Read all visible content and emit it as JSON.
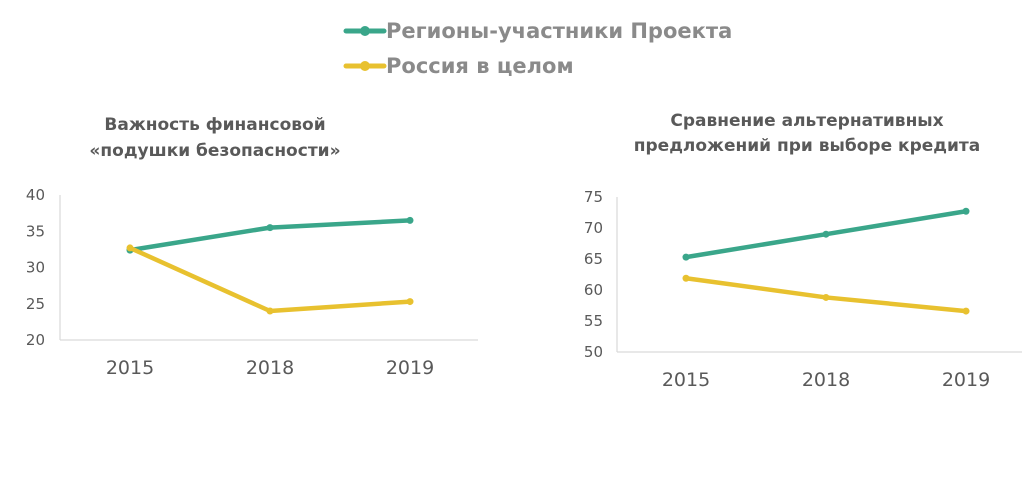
{
  "legend": {
    "items": [
      {
        "label": "Регионы-участники Проекта",
        "color": "#3aa68a"
      },
      {
        "label": "Россия в целом",
        "color": "#e8c12f"
      }
    ]
  },
  "chart_data": [
    {
      "type": "line",
      "title_lines": [
        "Важность финансовой",
        "«подушки безопасности»"
      ],
      "categories": [
        "2015",
        "2018",
        "2019"
      ],
      "ylim": [
        20,
        40
      ],
      "yticks": [
        "40",
        "35",
        "30",
        "25",
        "20"
      ],
      "series": [
        {
          "name": "Регионы-участники Проекта",
          "color": "#3aa68a",
          "values": [
            32.4,
            35.5,
            36.5
          ]
        },
        {
          "name": "Россия в целом",
          "color": "#e8c12f",
          "values": [
            32.7,
            24.0,
            25.3
          ]
        }
      ],
      "grid": false,
      "legend_position": "top"
    },
    {
      "type": "line",
      "title_lines": [
        "Сравнение альтернативных",
        "предложений при выборе кредита"
      ],
      "categories": [
        "2015",
        "2018",
        "2019"
      ],
      "ylim": [
        50,
        75
      ],
      "yticks": [
        "75",
        "70",
        "65",
        "60",
        "55",
        "50"
      ],
      "series": [
        {
          "name": "Регионы-участники Проекта",
          "color": "#3aa68a",
          "values": [
            65.3,
            69.0,
            72.7
          ]
        },
        {
          "name": "Россия в целом",
          "color": "#e8c12f",
          "values": [
            61.9,
            58.8,
            56.6
          ]
        }
      ],
      "grid": false,
      "legend_position": "top"
    }
  ]
}
